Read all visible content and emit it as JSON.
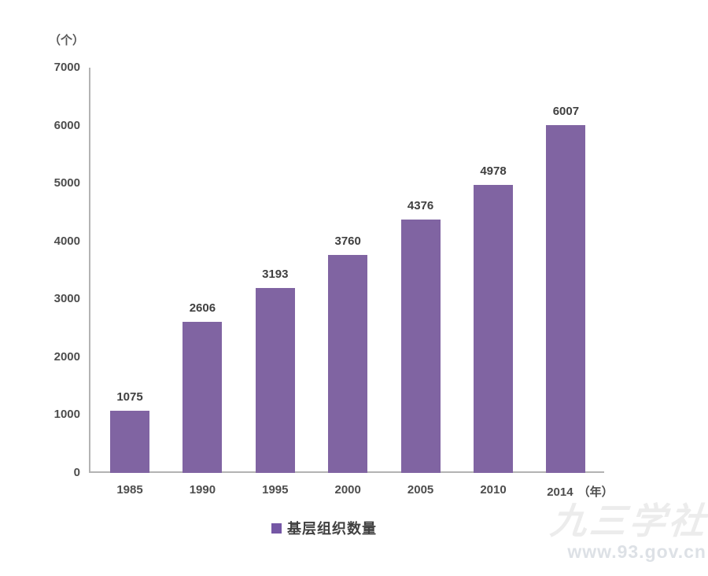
{
  "page": {
    "background": "#ffffff"
  },
  "chart_data": {
    "type": "bar",
    "title": "",
    "unit_label": "（个）",
    "x_unit": "（年）",
    "categories": [
      "1985",
      "1990",
      "1995",
      "2000",
      "2005",
      "2010",
      "2014"
    ],
    "values": [
      1075,
      2606,
      3193,
      3760,
      4376,
      4978,
      6007
    ],
    "ylim": [
      0,
      7000
    ],
    "yticks": [
      0,
      1000,
      2000,
      3000,
      4000,
      5000,
      6000,
      7000
    ],
    "grid": false,
    "legend": {
      "label": "基层组织数量",
      "position": "bottom"
    },
    "bar_color": "#8064A2",
    "legend_marker_color": "#7557A5",
    "axis_color": "#b3b3b3",
    "label_color": "#404040"
  },
  "watermark": {
    "name": "九三学社",
    "url": "www.93.gov.cn"
  }
}
